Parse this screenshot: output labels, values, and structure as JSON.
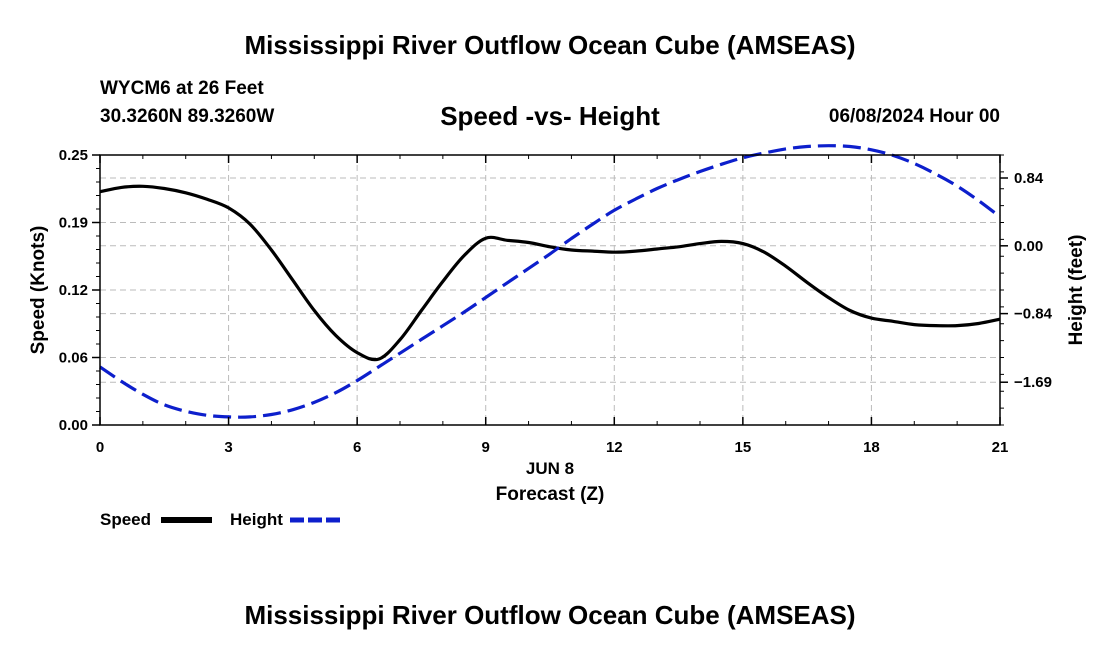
{
  "header": {
    "title": "Mississippi River Outflow Ocean Cube (AMSEAS)",
    "station": "WYCM6 at 26 Feet",
    "coords": "30.3260N  89.3260W",
    "datetime": "06/08/2024 Hour 00"
  },
  "footer": {
    "title": "Mississippi River Outflow Ocean Cube (AMSEAS)"
  },
  "legend": {
    "speed_label": "Speed",
    "height_label": "Height"
  },
  "colors": {
    "speed": "#000000",
    "height": "#0d1fcc",
    "grid": "#bbbbbb"
  },
  "chart_data": {
    "type": "line",
    "title": "Speed -vs- Height",
    "xlabel": "Forecast (Z)",
    "xsublabel": "JUN 8",
    "ylabel": "Speed (Knots)",
    "y2label": "Height (feet)",
    "xlim": [
      0,
      21
    ],
    "ylim": [
      0,
      0.25
    ],
    "y2lim": [
      -2.22,
      1.125
    ],
    "xticks": [
      0,
      3,
      6,
      9,
      12,
      15,
      18,
      21
    ],
    "xtick_labels": [
      "0",
      "3",
      "6",
      "9",
      "12",
      "15",
      "18",
      "21"
    ],
    "yticks": [
      0.0,
      0.0625,
      0.125,
      0.1875,
      0.25
    ],
    "ytick_labels": [
      "0.00",
      "0.06",
      "0.12",
      "0.19",
      "0.25"
    ],
    "y2ticks": [
      0.84,
      0.0,
      -0.84,
      -1.69
    ],
    "y2tick_labels": [
      "0.84",
      "0.00",
      "−0.84",
      "−1.69"
    ],
    "grid": true,
    "series": [
      {
        "name": "Speed",
        "axis": "left",
        "style": "solid",
        "x": [
          0,
          0.5,
          1,
          1.5,
          2,
          2.5,
          3,
          3.5,
          4,
          4.5,
          5,
          5.5,
          6,
          6.5,
          7,
          7.5,
          8,
          8.5,
          9,
          9.5,
          10,
          10.5,
          11,
          11.5,
          12,
          12.5,
          13,
          13.5,
          14,
          14.5,
          15,
          15.5,
          16,
          16.5,
          17,
          17.5,
          18,
          18.5,
          19,
          19.5,
          20,
          20.5,
          21
        ],
        "values": [
          0.216,
          0.22,
          0.221,
          0.219,
          0.215,
          0.209,
          0.201,
          0.186,
          0.162,
          0.134,
          0.106,
          0.083,
          0.067,
          0.061,
          0.079,
          0.106,
          0.133,
          0.157,
          0.173,
          0.171,
          0.169,
          0.165,
          0.162,
          0.161,
          0.16,
          0.161,
          0.163,
          0.165,
          0.168,
          0.17,
          0.168,
          0.16,
          0.147,
          0.132,
          0.118,
          0.106,
          0.099,
          0.096,
          0.093,
          0.092,
          0.092,
          0.094,
          0.098
        ]
      },
      {
        "name": "Height",
        "axis": "right",
        "style": "dashed",
        "x": [
          0,
          0.5,
          1,
          1.5,
          2,
          2.5,
          3,
          3.5,
          4,
          4.5,
          5,
          5.5,
          6,
          6.5,
          7,
          7.5,
          8,
          8.5,
          9,
          9.5,
          10,
          10.5,
          11,
          11.5,
          12,
          12.5,
          13,
          13.5,
          14,
          14.5,
          15,
          15.5,
          16,
          16.5,
          17,
          17.5,
          18,
          18.5,
          19,
          19.5,
          20,
          20.5,
          21
        ],
        "values": [
          -1.5,
          -1.68,
          -1.84,
          -1.97,
          -2.05,
          -2.1,
          -2.12,
          -2.12,
          -2.09,
          -2.03,
          -1.94,
          -1.82,
          -1.67,
          -1.5,
          -1.33,
          -1.16,
          -0.99,
          -0.82,
          -0.64,
          -0.46,
          -0.28,
          -0.1,
          0.09,
          0.27,
          0.44,
          0.58,
          0.71,
          0.82,
          0.92,
          1.01,
          1.09,
          1.15,
          1.2,
          1.23,
          1.24,
          1.23,
          1.19,
          1.12,
          1.02,
          0.89,
          0.74,
          0.56,
          0.36
        ]
      }
    ]
  }
}
